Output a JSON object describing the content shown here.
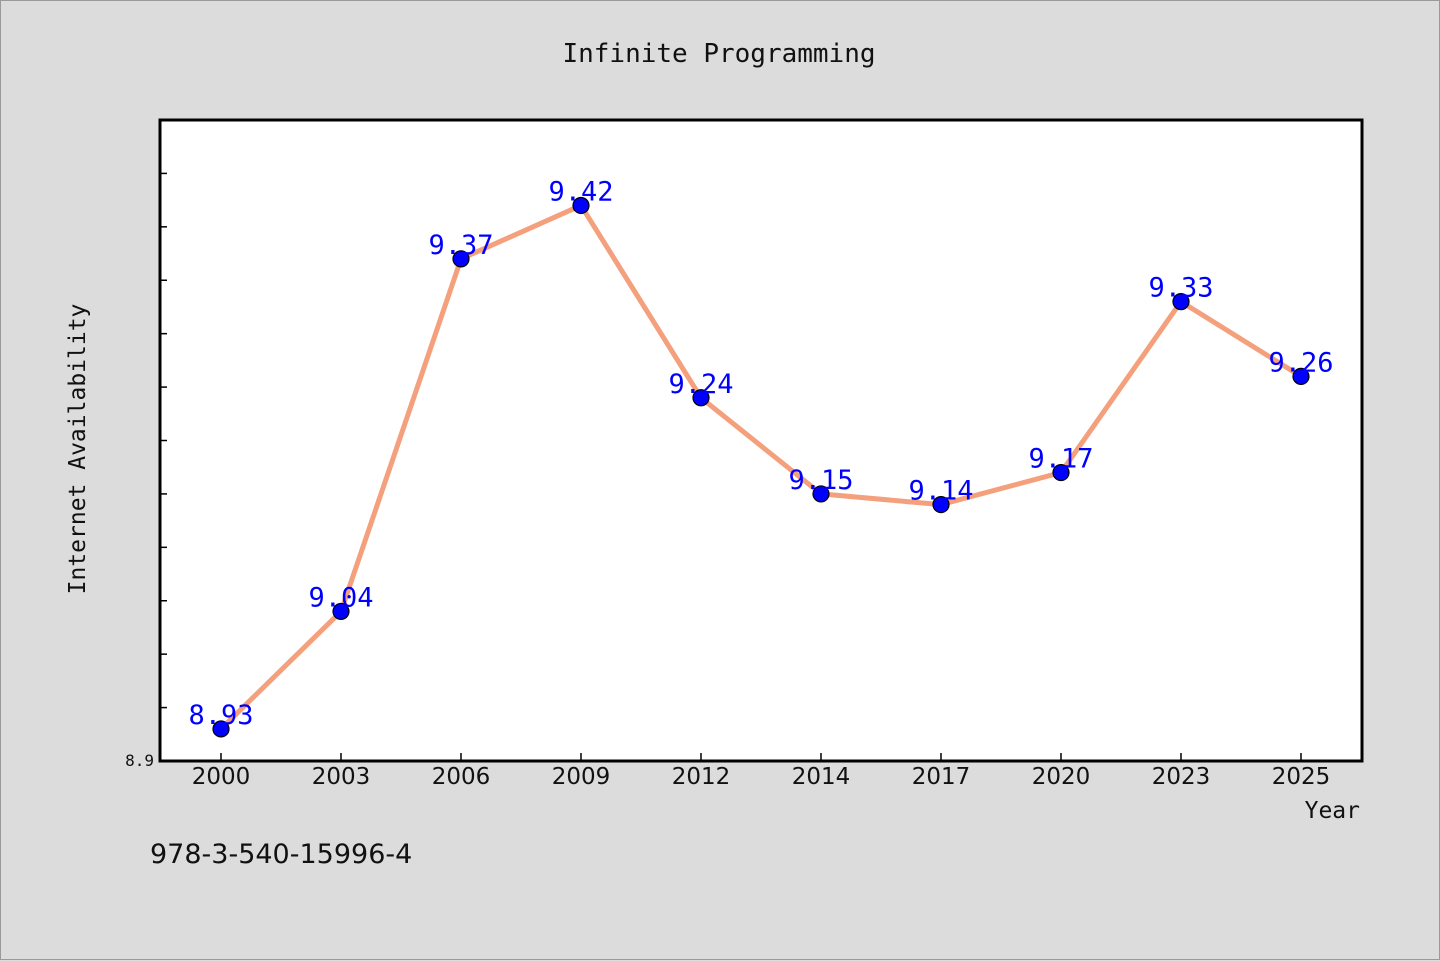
{
  "footer": {
    "text": "978-3-540-15996-4"
  },
  "chart_data": {
    "type": "line",
    "title": "Infinite Programming",
    "xlabel": "Year",
    "ylabel": "Internet Availability",
    "categories": [
      "2000",
      "2003",
      "2006",
      "2009",
      "2012",
      "2014",
      "2017",
      "2020",
      "2023",
      "2025"
    ],
    "series": [
      {
        "values": [
          8.93,
          9.04,
          9.37,
          9.42,
          9.24,
          9.15,
          9.14,
          9.17,
          9.33,
          9.26
        ]
      }
    ],
    "ylim": [
      8.9,
      9.5
    ],
    "y_tick_labels": [
      "8.9"
    ],
    "grid": false,
    "colors": {
      "line": "#f4a07c",
      "marker": "#0000ff",
      "data_label": "#0000ff",
      "plot_background": "#ffffff",
      "page_background": "#dcdcdc"
    }
  }
}
